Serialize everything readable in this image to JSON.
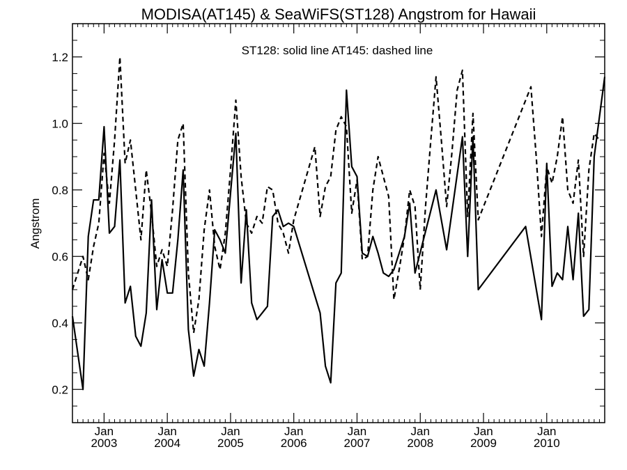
{
  "chart_data": {
    "type": "line",
    "title": "MODISA(AT145) & SeaWiFS(ST128)  Angstrom for Hawaii",
    "annotation": "ST128: solid line   AT145: dashed line",
    "xlabel": "",
    "ylabel": "Angstrom",
    "xlim": [
      "2002-07-01",
      "2010-12-01"
    ],
    "ylim": [
      0.1,
      1.3
    ],
    "yticks": [
      0.2,
      0.4,
      0.6,
      0.8,
      1.0,
      1.2
    ],
    "ytick_labels": [
      "0.2",
      "0.4",
      "0.6",
      "0.8",
      "1.0",
      "1.2"
    ],
    "xticks": [
      {
        "date": "2003-01-01",
        "month": "Jan",
        "year": "2003"
      },
      {
        "date": "2004-01-01",
        "month": "Jan",
        "year": "2004"
      },
      {
        "date": "2005-01-01",
        "month": "Jan",
        "year": "2005"
      },
      {
        "date": "2006-01-01",
        "month": "Jan",
        "year": "2006"
      },
      {
        "date": "2007-01-01",
        "month": "Jan",
        "year": "2007"
      },
      {
        "date": "2008-01-01",
        "month": "Jan",
        "year": "2008"
      },
      {
        "date": "2009-01-01",
        "month": "Jan",
        "year": "2009"
      },
      {
        "date": "2010-01-01",
        "month": "Jan",
        "year": "2010"
      }
    ],
    "grid": false,
    "series": [
      {
        "name": "ST128",
        "style": "solid",
        "color": "#000000",
        "points": [
          [
            "2002-07-01",
            0.42
          ],
          [
            "2002-09-01",
            0.2
          ],
          [
            "2002-10-01",
            0.66
          ],
          [
            "2002-11-01",
            0.77
          ],
          [
            "2002-12-01",
            0.77
          ],
          [
            "2003-01-01",
            0.99
          ],
          [
            "2003-02-01",
            0.67
          ],
          [
            "2003-03-01",
            0.69
          ],
          [
            "2003-04-01",
            0.89
          ],
          [
            "2003-05-01",
            0.46
          ],
          [
            "2003-06-01",
            0.51
          ],
          [
            "2003-07-01",
            0.36
          ],
          [
            "2003-08-01",
            0.33
          ],
          [
            "2003-09-01",
            0.43
          ],
          [
            "2003-10-01",
            0.77
          ],
          [
            "2003-11-01",
            0.44
          ],
          [
            "2003-12-01",
            0.59
          ],
          [
            "2004-01-01",
            0.49
          ],
          [
            "2004-02-01",
            0.49
          ],
          [
            "2004-03-01",
            0.65
          ],
          [
            "2004-04-01",
            0.86
          ],
          [
            "2004-05-01",
            0.38
          ],
          [
            "2004-06-01",
            0.24
          ],
          [
            "2004-07-01",
            0.32
          ],
          [
            "2004-08-01",
            0.27
          ],
          [
            "2004-09-01",
            0.46
          ],
          [
            "2004-10-01",
            0.68
          ],
          [
            "2004-11-01",
            0.65
          ],
          [
            "2004-12-01",
            0.61
          ],
          [
            "2005-01-01",
            0.79
          ],
          [
            "2005-02-01",
            0.97
          ],
          [
            "2005-03-01",
            0.52
          ],
          [
            "2005-04-01",
            0.74
          ],
          [
            "2005-05-01",
            0.46
          ],
          [
            "2005-06-01",
            0.41
          ],
          [
            "2005-08-01",
            0.45
          ],
          [
            "2005-09-01",
            0.72
          ],
          [
            "2005-10-01",
            0.74
          ],
          [
            "2005-11-01",
            0.69
          ],
          [
            "2005-12-01",
            0.7
          ],
          [
            "2006-01-01",
            0.69
          ],
          [
            "2006-06-01",
            0.43
          ],
          [
            "2006-07-01",
            0.27
          ],
          [
            "2006-08-01",
            0.22
          ],
          [
            "2006-09-01",
            0.52
          ],
          [
            "2006-10-01",
            0.55
          ],
          [
            "2006-11-01",
            1.1
          ],
          [
            "2006-12-01",
            0.87
          ],
          [
            "2007-01-01",
            0.84
          ],
          [
            "2007-02-01",
            0.61
          ],
          [
            "2007-03-01",
            0.6
          ],
          [
            "2007-04-01",
            0.66
          ],
          [
            "2007-05-01",
            0.61
          ],
          [
            "2007-06-01",
            0.55
          ],
          [
            "2007-07-01",
            0.54
          ],
          [
            "2007-08-01",
            0.56
          ],
          [
            "2007-10-01",
            0.66
          ],
          [
            "2007-11-01",
            0.76
          ],
          [
            "2007-12-01",
            0.55
          ],
          [
            "2008-04-01",
            0.8
          ],
          [
            "2008-06-01",
            0.62
          ],
          [
            "2008-09-01",
            0.96
          ],
          [
            "2008-10-01",
            0.6
          ],
          [
            "2008-11-01",
            0.96
          ],
          [
            "2008-12-01",
            0.5
          ],
          [
            "2009-09-01",
            0.69
          ],
          [
            "2009-12-01",
            0.41
          ],
          [
            "2010-01-01",
            0.88
          ],
          [
            "2010-02-01",
            0.51
          ],
          [
            "2010-03-01",
            0.55
          ],
          [
            "2010-04-01",
            0.53
          ],
          [
            "2010-05-01",
            0.69
          ],
          [
            "2010-06-01",
            0.53
          ],
          [
            "2010-07-01",
            0.73
          ],
          [
            "2010-08-01",
            0.42
          ],
          [
            "2010-09-01",
            0.44
          ],
          [
            "2010-10-01",
            0.9
          ],
          [
            "2010-12-01",
            1.14
          ]
        ]
      },
      {
        "name": "AT145",
        "style": "dashed",
        "color": "#000000",
        "points": [
          [
            "2002-07-01",
            0.5
          ],
          [
            "2002-09-01",
            0.6
          ],
          [
            "2002-10-01",
            0.53
          ],
          [
            "2002-11-01",
            0.63
          ],
          [
            "2002-12-01",
            0.7
          ],
          [
            "2003-01-01",
            0.91
          ],
          [
            "2003-02-01",
            0.76
          ],
          [
            "2003-03-01",
            0.95
          ],
          [
            "2003-04-01",
            1.2
          ],
          [
            "2003-05-01",
            0.88
          ],
          [
            "2003-06-01",
            0.95
          ],
          [
            "2003-07-01",
            0.8
          ],
          [
            "2003-08-01",
            0.65
          ],
          [
            "2003-09-01",
            0.86
          ],
          [
            "2003-10-01",
            0.73
          ],
          [
            "2003-11-01",
            0.57
          ],
          [
            "2003-12-01",
            0.62
          ],
          [
            "2004-01-01",
            0.57
          ],
          [
            "2004-02-01",
            0.74
          ],
          [
            "2004-03-01",
            0.95
          ],
          [
            "2004-04-01",
            1.0
          ],
          [
            "2004-05-01",
            0.55
          ],
          [
            "2004-06-01",
            0.37
          ],
          [
            "2004-07-01",
            0.47
          ],
          [
            "2004-08-01",
            0.68
          ],
          [
            "2004-09-01",
            0.8
          ],
          [
            "2004-10-01",
            0.63
          ],
          [
            "2004-11-01",
            0.56
          ],
          [
            "2004-12-01",
            0.67
          ],
          [
            "2005-01-01",
            0.86
          ],
          [
            "2005-02-01",
            1.07
          ],
          [
            "2005-03-01",
            0.84
          ],
          [
            "2005-04-01",
            0.7
          ],
          [
            "2005-05-01",
            0.67
          ],
          [
            "2005-06-01",
            0.72
          ],
          [
            "2005-07-01",
            0.7
          ],
          [
            "2005-08-01",
            0.81
          ],
          [
            "2005-09-01",
            0.8
          ],
          [
            "2005-10-01",
            0.7
          ],
          [
            "2005-11-01",
            0.67
          ],
          [
            "2005-12-01",
            0.61
          ],
          [
            "2006-01-01",
            0.71
          ],
          [
            "2006-05-01",
            0.93
          ],
          [
            "2006-06-01",
            0.72
          ],
          [
            "2006-07-01",
            0.81
          ],
          [
            "2006-08-01",
            0.84
          ],
          [
            "2006-09-01",
            0.98
          ],
          [
            "2006-10-01",
            1.02
          ],
          [
            "2006-11-01",
            0.99
          ],
          [
            "2006-12-01",
            0.73
          ],
          [
            "2007-01-01",
            0.83
          ],
          [
            "2007-02-01",
            0.59
          ],
          [
            "2007-03-01",
            0.6
          ],
          [
            "2007-04-01",
            0.8
          ],
          [
            "2007-05-01",
            0.9
          ],
          [
            "2007-07-01",
            0.78
          ],
          [
            "2007-08-01",
            0.47
          ],
          [
            "2007-09-01",
            0.56
          ],
          [
            "2007-10-01",
            0.66
          ],
          [
            "2007-11-01",
            0.8
          ],
          [
            "2007-12-01",
            0.75
          ],
          [
            "2008-01-01",
            0.5
          ],
          [
            "2008-02-01",
            0.75
          ],
          [
            "2008-03-01",
            0.95
          ],
          [
            "2008-04-01",
            1.14
          ],
          [
            "2008-05-01",
            0.95
          ],
          [
            "2008-06-01",
            0.75
          ],
          [
            "2008-07-01",
            0.91
          ],
          [
            "2008-08-01",
            1.1
          ],
          [
            "2008-09-01",
            1.16
          ],
          [
            "2008-10-01",
            0.72
          ],
          [
            "2008-11-01",
            1.03
          ],
          [
            "2008-12-01",
            0.71
          ],
          [
            "2009-10-01",
            1.11
          ],
          [
            "2009-11-01",
            0.9
          ],
          [
            "2009-12-01",
            0.66
          ],
          [
            "2010-01-01",
            0.87
          ],
          [
            "2010-02-01",
            0.82
          ],
          [
            "2010-03-01",
            0.9
          ],
          [
            "2010-04-01",
            1.02
          ],
          [
            "2010-05-01",
            0.8
          ],
          [
            "2010-06-01",
            0.76
          ],
          [
            "2010-07-01",
            0.89
          ],
          [
            "2010-08-01",
            0.6
          ],
          [
            "2010-09-01",
            0.86
          ],
          [
            "2010-10-01",
            0.97
          ],
          [
            "2010-11-01",
            0.95
          ]
        ]
      }
    ]
  }
}
